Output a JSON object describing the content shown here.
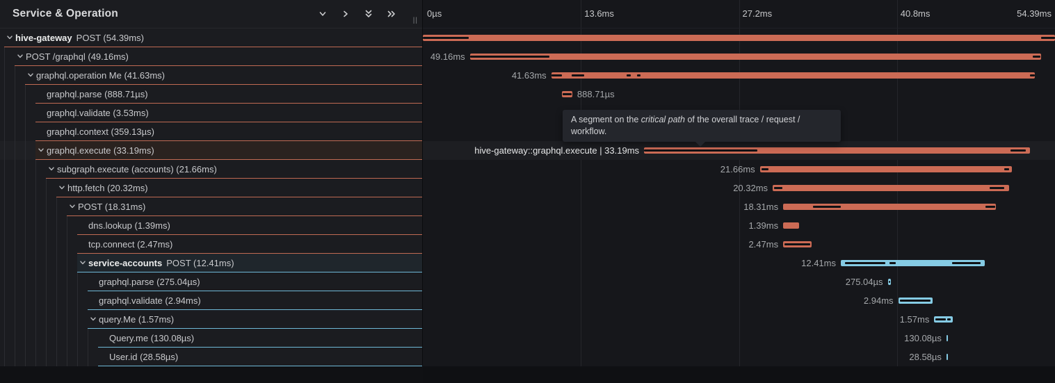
{
  "header": {
    "title": "Service & Operation",
    "icons": [
      {
        "name": "chevron-down-icon"
      },
      {
        "name": "chevron-right-icon"
      },
      {
        "name": "double-chevron-down-icon"
      },
      {
        "name": "double-chevron-right-icon"
      }
    ],
    "resize_handle": "||"
  },
  "tooltip": {
    "prefix": "A segment on the ",
    "italic": "critical path",
    "suffix": " of the overall trace / request / workflow."
  },
  "timeline": {
    "total_ms": 54.39,
    "ticks": [
      {
        "label": "0µs",
        "pct": 0
      },
      {
        "label": "13.6ms",
        "pct": 25
      },
      {
        "label": "27.2ms",
        "pct": 50
      },
      {
        "label": "40.8ms",
        "pct": 75
      },
      {
        "label": "54.39ms",
        "pct": 100
      }
    ]
  },
  "colors": {
    "span_orange": "#cc6b55",
    "span_blue": "#85cbe4",
    "critical_path": "#101114",
    "border_orange": "#c06a53",
    "border_blue": "#6fb9d7"
  },
  "spans": [
    {
      "level": 0,
      "bold": "hive-gateway",
      "text": "POST (54.39ms)",
      "chevron": true,
      "border": "orange",
      "color": "orange",
      "start_ms": 0,
      "duration_ms": 54.39,
      "bar_label": "",
      "label_side": "none",
      "bright": false,
      "selected": false,
      "highlight": "none",
      "critical": [
        [
          0,
          0.073
        ],
        [
          0.978,
          1
        ]
      ]
    },
    {
      "level": 1,
      "bold": "",
      "text": "POST /graphql (49.16ms)",
      "chevron": true,
      "border": "orange",
      "color": "orange",
      "start_ms": 4.05,
      "duration_ms": 49.16,
      "bar_label": "49.16ms",
      "label_side": "left",
      "bright": false,
      "selected": false,
      "highlight": "none",
      "critical": [
        [
          0,
          0.139
        ],
        [
          0.985,
          0.998
        ]
      ]
    },
    {
      "level": 2,
      "bold": "",
      "text": "graphql.operation Me (41.63ms)",
      "chevron": true,
      "border": "orange",
      "color": "orange",
      "start_ms": 11.05,
      "duration_ms": 41.63,
      "bar_label": "41.63ms",
      "label_side": "left",
      "bright": false,
      "selected": false,
      "highlight": "none",
      "critical": [
        [
          0,
          0.022
        ],
        [
          0.042,
          0.068
        ],
        [
          0.156,
          0.165
        ],
        [
          0.177,
          0.185
        ],
        [
          0.99,
          1
        ]
      ]
    },
    {
      "level": 3,
      "bold": "",
      "text": "graphql.parse (888.71µs)",
      "chevron": false,
      "border": "orange",
      "color": "orange",
      "start_ms": 11.97,
      "duration_ms": 0.88871,
      "bar_label": "888.71µs",
      "label_side": "right",
      "bright": false,
      "selected": false,
      "highlight": "none",
      "critical": [
        [
          0.08,
          0.92
        ]
      ]
    },
    {
      "level": 3,
      "bold": "",
      "text": "graphql.validate (3.53ms)",
      "chevron": false,
      "border": "orange",
      "color": "orange",
      "start_ms": 14.0,
      "duration_ms": 3.53,
      "bar_label": "3.53ms",
      "label_side": "right",
      "bright": false,
      "selected": false,
      "highlight": "none",
      "critical": [
        [
          0.05,
          0.95
        ]
      ]
    },
    {
      "level": 3,
      "bold": "",
      "text": "graphql.context (359.13µs)",
      "chevron": false,
      "border": "orange",
      "color": "orange",
      "start_ms": 17.6,
      "duration_ms": 0.35913,
      "bar_label": "359.13µs",
      "label_side": "right",
      "bright": false,
      "selected": false,
      "highlight": "none",
      "critical": []
    },
    {
      "level": 3,
      "bold": "",
      "text": "graphql.execute (33.19ms)",
      "chevron": true,
      "border": "orange",
      "color": "orange",
      "start_ms": 19.03,
      "duration_ms": 33.19,
      "bar_label": "hive-gateway::graphql.execute | 33.19ms",
      "label_side": "left",
      "bright": true,
      "selected": true,
      "highlight": "warm",
      "critical": [
        [
          0,
          0.293
        ],
        [
          0.95,
          0.99
        ]
      ]
    },
    {
      "level": 4,
      "bold": "",
      "text": "subgraph.execute (accounts) (21.66ms)",
      "chevron": true,
      "border": "orange",
      "color": "orange",
      "start_ms": 29.0,
      "duration_ms": 21.66,
      "bar_label": "21.66ms",
      "label_side": "left",
      "bright": false,
      "selected": false,
      "highlight": "none",
      "critical": [
        [
          0.006,
          0.034
        ],
        [
          0.97,
          0.99
        ]
      ]
    },
    {
      "level": 5,
      "bold": "",
      "text": "http.fetch (20.32ms)",
      "chevron": true,
      "border": "orange",
      "color": "orange",
      "start_ms": 30.1,
      "duration_ms": 20.32,
      "bar_label": "20.32ms",
      "label_side": "left",
      "bright": false,
      "selected": false,
      "highlight": "none",
      "critical": [
        [
          0.006,
          0.042
        ],
        [
          0.92,
          0.98
        ]
      ]
    },
    {
      "level": 6,
      "bold": "",
      "text": "POST (18.31ms)",
      "chevron": true,
      "border": "orange",
      "color": "orange",
      "start_ms": 31.0,
      "duration_ms": 18.31,
      "bar_label": "18.31ms",
      "label_side": "left",
      "bright": false,
      "selected": false,
      "highlight": "none",
      "critical": [
        [
          0.14,
          0.27
        ],
        [
          0.95,
          0.995
        ]
      ]
    },
    {
      "level": 7,
      "bold": "",
      "text": "dns.lookup (1.39ms)",
      "chevron": false,
      "border": "orange",
      "color": "orange",
      "start_ms": 31.0,
      "duration_ms": 1.39,
      "bar_label": "1.39ms",
      "label_side": "left",
      "bright": false,
      "selected": false,
      "highlight": "none",
      "critical": []
    },
    {
      "level": 7,
      "bold": "",
      "text": "tcp.connect (2.47ms)",
      "chevron": false,
      "border": "orange",
      "color": "orange",
      "start_ms": 31.0,
      "duration_ms": 2.47,
      "bar_label": "2.47ms",
      "label_side": "left",
      "bright": false,
      "selected": false,
      "highlight": "none",
      "critical": [
        [
          0.05,
          0.95
        ]
      ]
    },
    {
      "level": 7,
      "bold": "service-accounts",
      "text": "POST (12.41ms)",
      "chevron": true,
      "border": "blue",
      "color": "blue",
      "start_ms": 35.96,
      "duration_ms": 12.41,
      "bar_label": "12.41ms",
      "label_side": "left",
      "bright": false,
      "selected": false,
      "highlight": "blue",
      "critical": [
        [
          0.03,
          0.31
        ],
        [
          0.34,
          0.38
        ],
        [
          0.77,
          0.97
        ]
      ]
    },
    {
      "level": 8,
      "bold": "",
      "text": "graphql.parse (275.04µs)",
      "chevron": false,
      "border": "blue",
      "color": "blue",
      "start_ms": 40.0,
      "duration_ms": 0.27504,
      "bar_label": "275.04µs",
      "label_side": "left",
      "bright": false,
      "selected": false,
      "highlight": "none",
      "critical": [
        [
          0.25,
          0.75
        ]
      ]
    },
    {
      "level": 8,
      "bold": "",
      "text": "graphql.validate (2.94ms)",
      "chevron": false,
      "border": "blue",
      "color": "blue",
      "start_ms": 40.9,
      "duration_ms": 2.94,
      "bar_label": "2.94ms",
      "label_side": "left",
      "bright": false,
      "selected": false,
      "highlight": "none",
      "critical": [
        [
          0.05,
          0.95
        ]
      ]
    },
    {
      "level": 8,
      "bold": "",
      "text": "query.Me (1.57ms)",
      "chevron": true,
      "border": "blue",
      "color": "blue",
      "start_ms": 44.0,
      "duration_ms": 1.57,
      "bar_label": "1.57ms",
      "label_side": "left",
      "bright": false,
      "selected": false,
      "highlight": "none",
      "critical": [
        [
          0.08,
          0.62
        ],
        [
          0.72,
          0.9
        ]
      ]
    },
    {
      "level": 9,
      "bold": "",
      "text": "Query.me (130.08µs)",
      "chevron": false,
      "border": "blue",
      "color": "blue",
      "start_ms": 45.05,
      "duration_ms": 0.13008,
      "bar_label": "130.08µs",
      "label_side": "left",
      "bright": false,
      "selected": false,
      "highlight": "none",
      "critical": []
    },
    {
      "level": 9,
      "bold": "",
      "text": "User.id (28.58µs)",
      "chevron": false,
      "border": "blue",
      "color": "blue",
      "start_ms": 45.05,
      "duration_ms": 0.02858,
      "bar_label": "28.58µs",
      "label_side": "left",
      "bright": false,
      "selected": false,
      "highlight": "none",
      "critical": []
    }
  ]
}
